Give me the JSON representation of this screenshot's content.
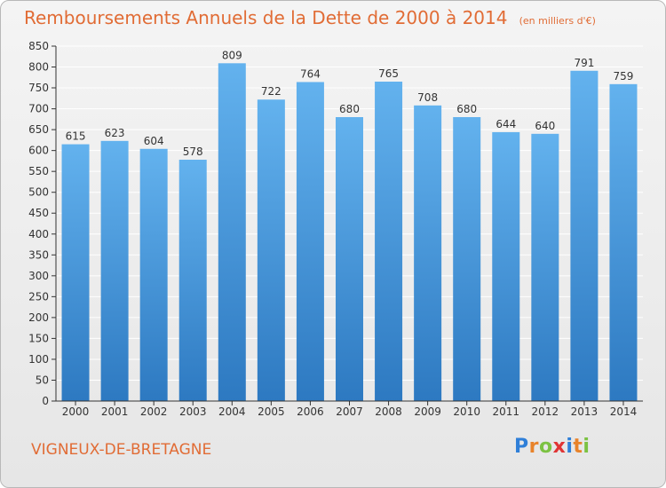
{
  "header": {
    "title": "Remboursements Annuels de la Dette de 2000 à 2014",
    "subtitle": "(en milliers d'€)"
  },
  "footer": {
    "city": "VIGNEUX-DE-BRETAGNE",
    "logo_letters": [
      "P",
      "r",
      "o",
      "x",
      "i",
      "t",
      "i"
    ],
    "logo_colors": [
      "#2f7fd8",
      "#e8832a",
      "#7cc242",
      "#e03434",
      "#2f7fd8",
      "#e8832a",
      "#7cc242"
    ]
  },
  "colors": {
    "bar_top": "#63b2ee",
    "bar_bottom": "#2d79c1",
    "grid": "#ffffff",
    "accent": "#e16c35"
  },
  "chart_data": {
    "type": "bar",
    "title": "Remboursements Annuels de la Dette de 2000 à 2014",
    "xlabel": "",
    "ylabel": "",
    "categories": [
      "2000",
      "2001",
      "2002",
      "2003",
      "2004",
      "2005",
      "2006",
      "2007",
      "2008",
      "2009",
      "2010",
      "2011",
      "2012",
      "2013",
      "2014"
    ],
    "values": [
      615,
      623,
      604,
      578,
      809,
      722,
      764,
      680,
      765,
      708,
      680,
      644,
      640,
      791,
      759
    ],
    "ylim": [
      0,
      850
    ],
    "ytick_step": 50,
    "grid": true
  }
}
